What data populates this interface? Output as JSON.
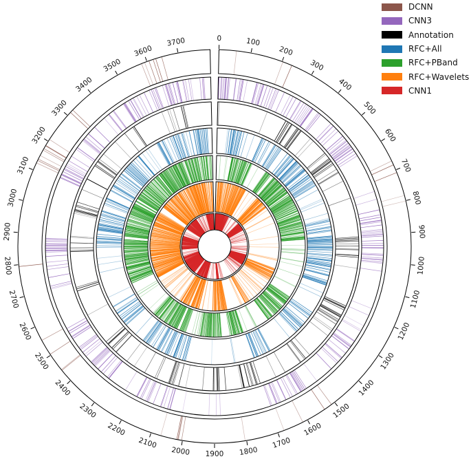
{
  "chart_data": {
    "type": "circos",
    "title": "",
    "position_range": [
      0,
      3800
    ],
    "ticks": [
      0,
      100,
      200,
      300,
      400,
      500,
      600,
      700,
      800,
      900,
      1000,
      1100,
      1200,
      1300,
      1400,
      1500,
      1600,
      1700,
      1800,
      1900,
      2000,
      2100,
      2200,
      2300,
      2400,
      2500,
      2600,
      2700,
      2800,
      2900,
      3000,
      3100,
      3200,
      3300,
      3400,
      3500,
      3600,
      3700
    ],
    "tick_labels": [
      "0",
      "100",
      "200",
      "300",
      "400",
      "500",
      "600",
      "700",
      "800",
      "900",
      "1000",
      "1100",
      "1200",
      "1300",
      "1400",
      "1500",
      "1600",
      "1700",
      "1800",
      "1900",
      "2000",
      "2100",
      "2200",
      "2300",
      "2400",
      "2500",
      "2600",
      "2700",
      "2800",
      "2900",
      "3000",
      "3100",
      "3200",
      "3300",
      "3400",
      "3500",
      "3600",
      "3700"
    ],
    "legend_order": [
      "DCNN",
      "CNN3",
      "Annotation",
      "RFC+All",
      "RFC+PBand",
      "RFC+Wavelets",
      "CNN1"
    ],
    "tracks": [
      {
        "name": "CNN1",
        "color": "#d62728",
        "density": 0.55,
        "intervals": [
          [
            0,
            260
          ],
          [
            480,
            620
          ],
          [
            1100,
            1300
          ],
          [
            1820,
            1860
          ],
          [
            2050,
            2250
          ],
          [
            2300,
            2650
          ],
          [
            2800,
            3050
          ],
          [
            3200,
            3450
          ],
          [
            3650,
            3790
          ]
        ]
      },
      {
        "name": "RFC+Wavelets",
        "color": "#ff7f0e",
        "density": 0.35,
        "intervals": [
          [
            20,
            300
          ],
          [
            420,
            560
          ],
          [
            1150,
            1280
          ],
          [
            1550,
            1600
          ],
          [
            1780,
            1920
          ],
          [
            2050,
            2250
          ],
          [
            2550,
            3200
          ],
          [
            3250,
            3790
          ]
        ]
      },
      {
        "name": "RFC+PBand",
        "color": "#2ca02c",
        "density": 0.35,
        "intervals": [
          [
            100,
            250
          ],
          [
            350,
            900
          ],
          [
            1300,
            1520
          ],
          [
            1700,
            1800
          ],
          [
            1850,
            2000
          ],
          [
            2100,
            2350
          ],
          [
            2600,
            3790
          ]
        ]
      },
      {
        "name": "RFC+All",
        "color": "#1f77b4",
        "density": 0.18,
        "intervals": [
          [
            60,
            160
          ],
          [
            230,
            650
          ],
          [
            800,
            1150
          ],
          [
            1300,
            1450
          ],
          [
            1600,
            1700
          ],
          [
            2050,
            2300
          ],
          [
            2400,
            2550
          ],
          [
            2850,
            3050
          ],
          [
            3080,
            3400
          ],
          [
            3500,
            3790
          ]
        ]
      },
      {
        "name": "Annotation",
        "color": "#000000",
        "density": 0.12,
        "intervals": [
          [
            300,
            380
          ],
          [
            500,
            620
          ],
          [
            900,
            1000
          ],
          [
            1200,
            1300
          ],
          [
            1480,
            1520
          ],
          [
            1700,
            1780
          ],
          [
            1850,
            1930
          ],
          [
            2050,
            2100
          ],
          [
            2350,
            2420
          ],
          [
            2650,
            2700
          ],
          [
            2830,
            2880
          ],
          [
            3000,
            3050
          ],
          [
            3150,
            3250
          ],
          [
            3400,
            3470
          ],
          [
            3650,
            3700
          ]
        ]
      },
      {
        "name": "CNN3",
        "color": "#9467bd",
        "density": 0.12,
        "intervals": [
          [
            0,
            600
          ],
          [
            800,
            1050
          ],
          [
            1300,
            1450
          ],
          [
            1550,
            1700
          ],
          [
            2050,
            2200
          ],
          [
            2300,
            2550
          ],
          [
            2700,
            2900
          ],
          [
            3100,
            3350
          ],
          [
            3400,
            3790
          ]
        ]
      },
      {
        "name": "DCNN",
        "color": "#8c564b",
        "density": 0.05,
        "intervals": [
          [
            100,
            150
          ],
          [
            200,
            250
          ],
          [
            660,
            710
          ],
          [
            1350,
            1400
          ],
          [
            1500,
            1550
          ],
          [
            2000,
            2050
          ],
          [
            2400,
            2450
          ],
          [
            2500,
            2560
          ],
          [
            2780,
            2800
          ],
          [
            3100,
            3200
          ],
          [
            3300,
            3330
          ],
          [
            3550,
            3650
          ]
        ]
      }
    ]
  }
}
